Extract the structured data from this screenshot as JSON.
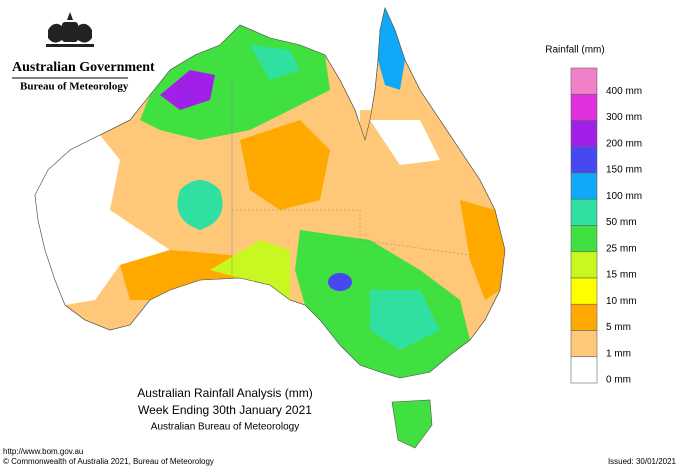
{
  "header": {
    "government": "Australian Government",
    "agency": "Bureau of Meteorology"
  },
  "legend": {
    "title": "Rainfall (mm)",
    "items": [
      {
        "color": "#f080c8",
        "label": "400 mm"
      },
      {
        "color": "#e030e0",
        "label": "300 mm"
      },
      {
        "color": "#a020e8",
        "label": "200 mm"
      },
      {
        "color": "#4848f0",
        "label": "150 mm"
      },
      {
        "color": "#10a8f8",
        "label": "100 mm"
      },
      {
        "color": "#30e0a0",
        "label": "50 mm"
      },
      {
        "color": "#40e040",
        "label": "25 mm"
      },
      {
        "color": "#c8f820",
        "label": "15 mm"
      },
      {
        "color": "#ffff00",
        "label": "10 mm"
      },
      {
        "color": "#ffa800",
        "label": "5 mm"
      },
      {
        "color": "#ffc878",
        "label": "1 mm"
      },
      {
        "color": "#ffffff",
        "label": "0 mm"
      }
    ]
  },
  "caption": {
    "line1": "Australian Rainfall Analysis (mm)",
    "line2": "Week Ending 30th January 2021",
    "line3": "Australian Bureau of Meteorology"
  },
  "footer": {
    "url": "http://www.bom.gov.au",
    "copyright": "© Commonwealth of Australia 2021, Bureau of Meteorology",
    "issued": "Issued: 30/01/2021"
  }
}
